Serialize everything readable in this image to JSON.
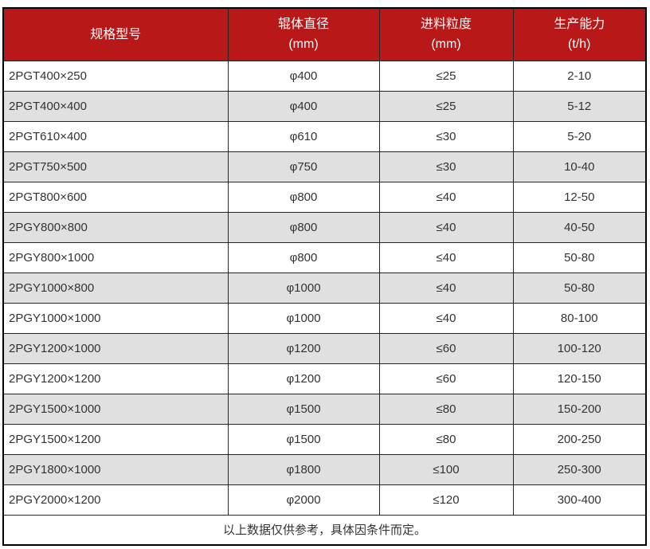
{
  "table": {
    "columns": [
      {
        "title": "规格型号",
        "unit": ""
      },
      {
        "title": "辊体直径",
        "unit": "(mm)"
      },
      {
        "title": "进料粒度",
        "unit": "(mm)"
      },
      {
        "title": "生产能力",
        "unit": "(t/h)"
      }
    ],
    "rows": [
      [
        "2PGT400×250",
        "φ400",
        "≤25",
        "2-10"
      ],
      [
        "2PGT400×400",
        "φ400",
        "≤25",
        "5-12"
      ],
      [
        "2PGT610×400",
        "φ610",
        "≤30",
        "5-20"
      ],
      [
        "2PGT750×500",
        "φ750",
        "≤30",
        "10-40"
      ],
      [
        "2PGT800×600",
        "φ800",
        "≤40",
        "12-50"
      ],
      [
        "2PGY800×800",
        "φ800",
        "≤40",
        "40-50"
      ],
      [
        "2PGY800×1000",
        "φ800",
        "≤40",
        "50-80"
      ],
      [
        "2PGY1000×800",
        "φ1000",
        "≤40",
        "50-80"
      ],
      [
        "2PGY1000×1000",
        "φ1000",
        "≤40",
        "80-100"
      ],
      [
        "2PGY1200×1000",
        "φ1200",
        "≤60",
        "100-120"
      ],
      [
        "2PGY1200×1200",
        "φ1200",
        "≤60",
        "120-150"
      ],
      [
        "2PGY1500×1000",
        "φ1500",
        "≤80",
        "150-200"
      ],
      [
        "2PGY1500×1200",
        "φ1500",
        "≤80",
        "200-250"
      ],
      [
        "2PGY1800×1000",
        "φ1800",
        "≤100",
        "250-300"
      ],
      [
        "2PGY2000×1200",
        "φ2000",
        "≤120",
        "300-400"
      ]
    ],
    "footer_note": "以上数据仅供参考，具体因条件而定。"
  },
  "colors": {
    "header_bg": "#b91818",
    "header_text": "#ffffff",
    "row_alt_bg": "#e0e0e0",
    "border": "#262626",
    "text": "#333333"
  }
}
